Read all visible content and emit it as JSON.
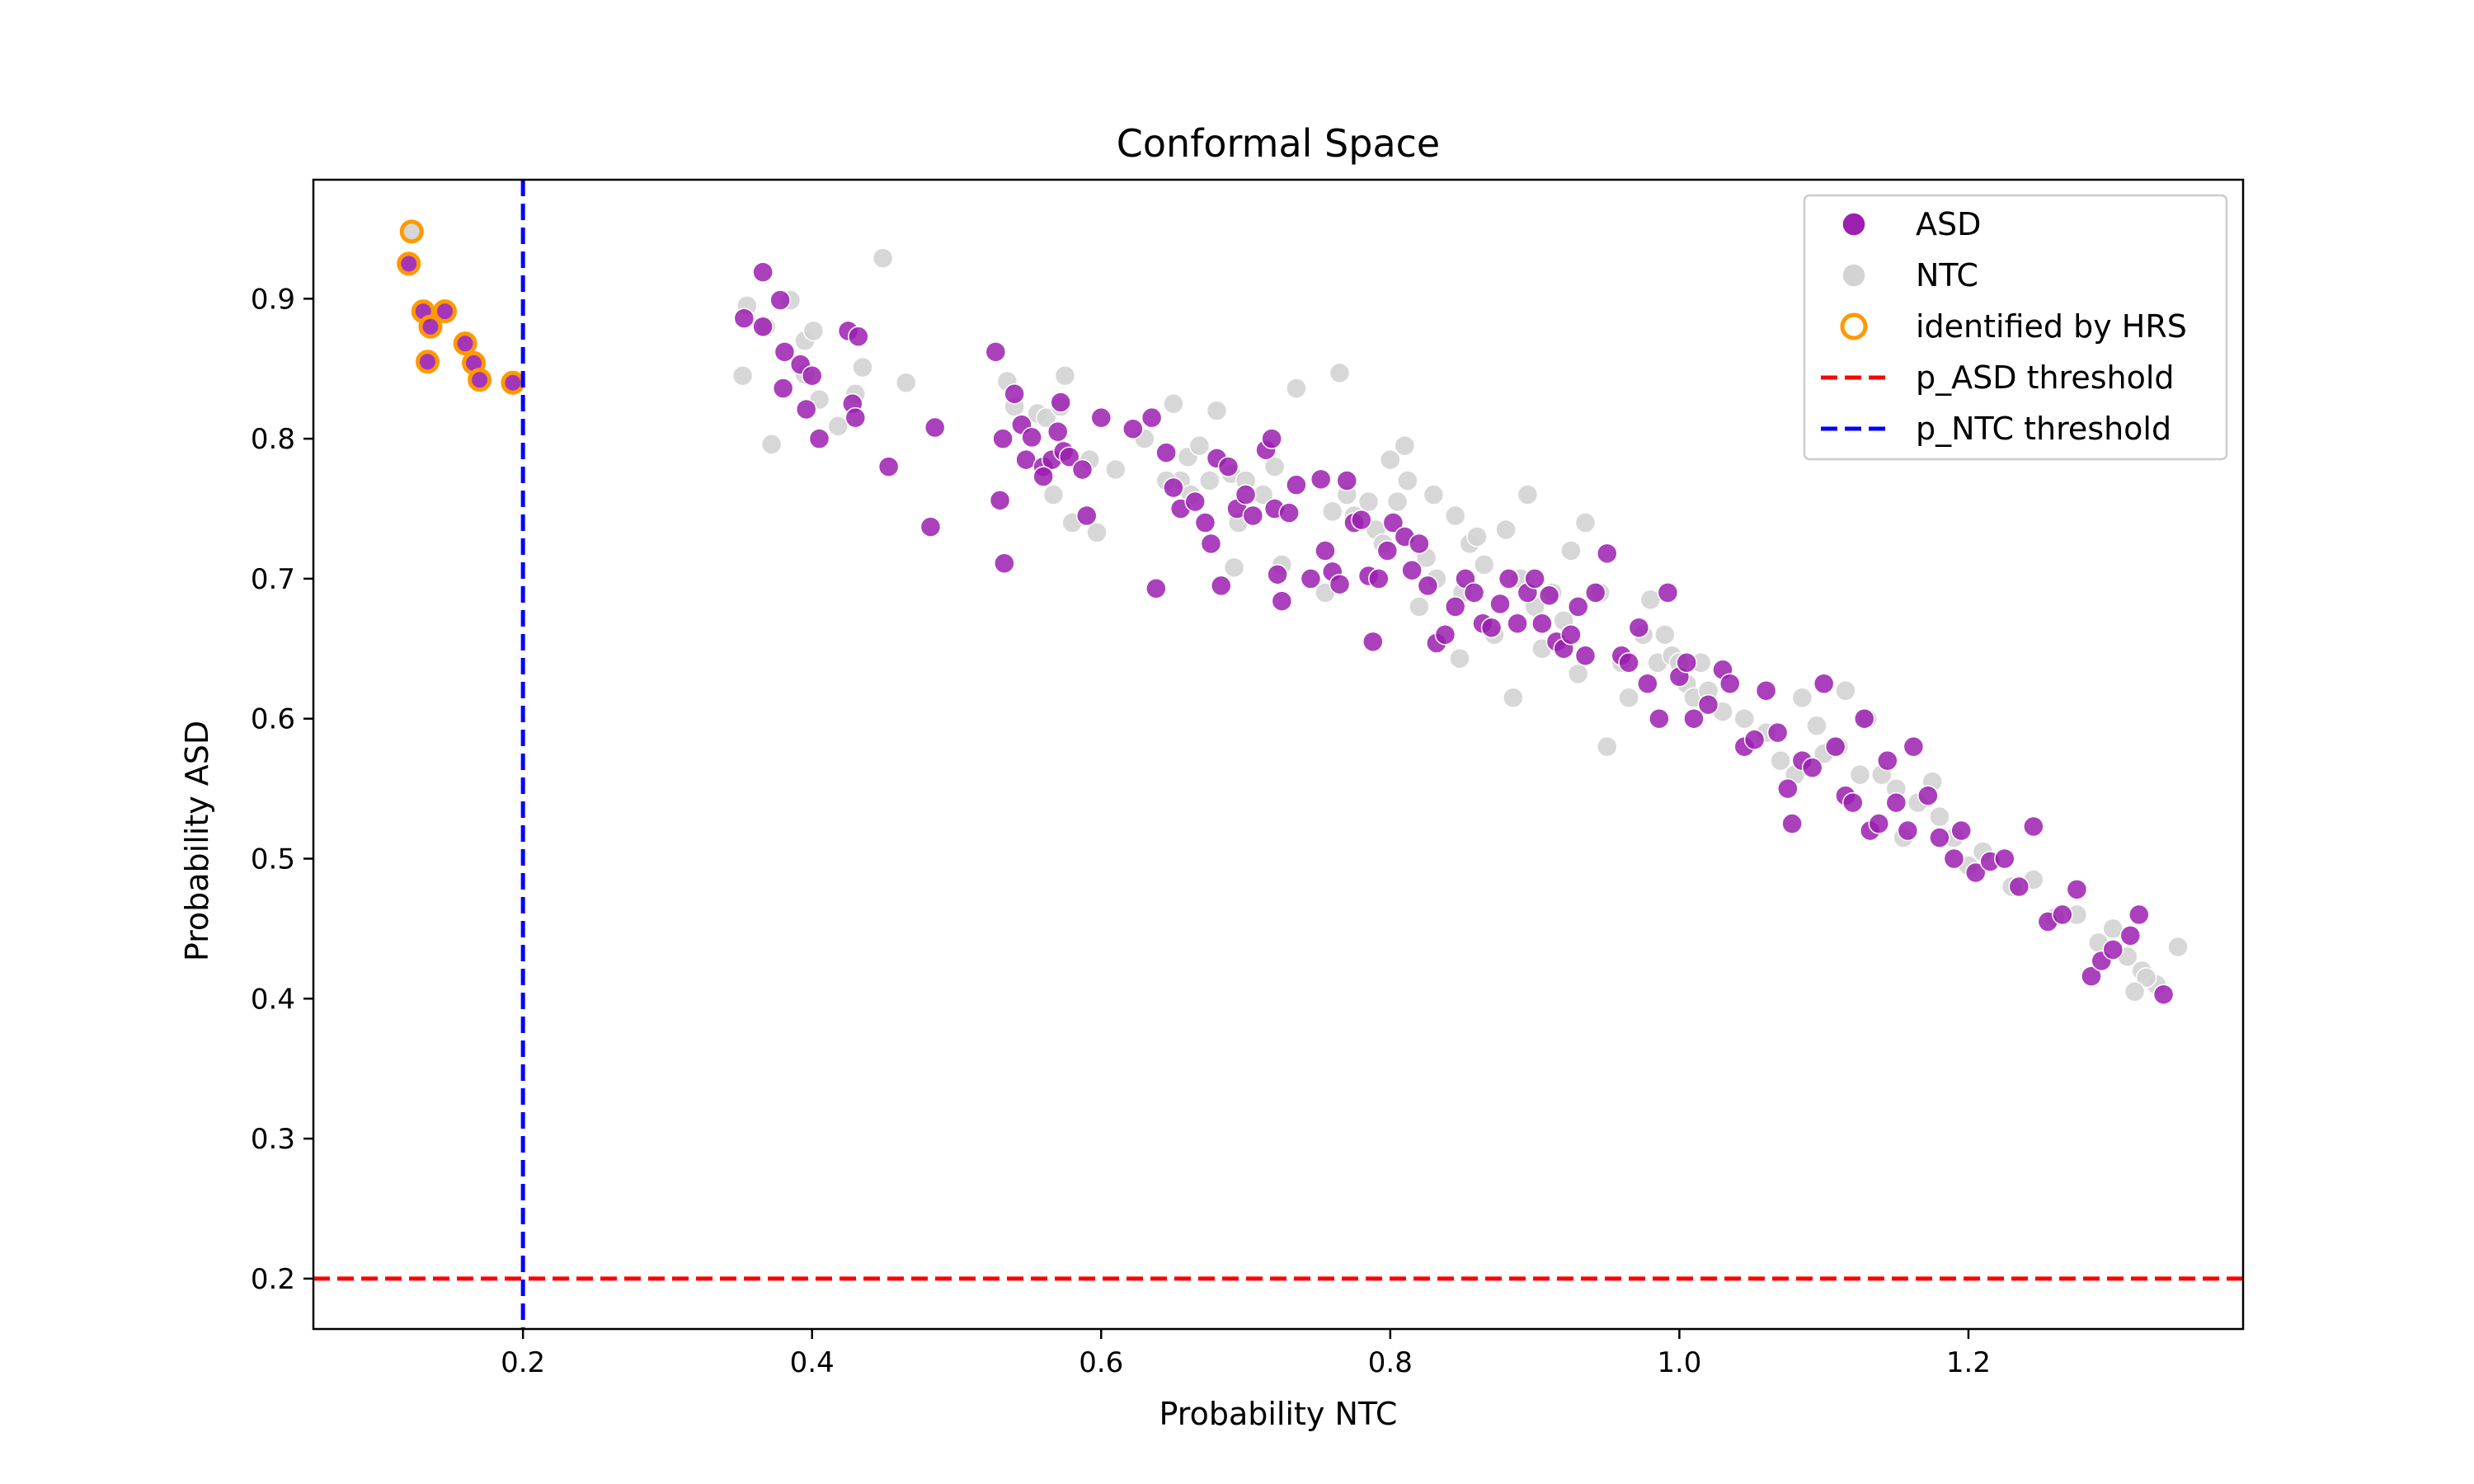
{
  "chart_data": {
    "type": "scatter",
    "title": "Conformal Space",
    "xlabel": "Probability NTC",
    "ylabel": "Probability ASD",
    "xlim": [
      0.055,
      1.39
    ],
    "ylim": [
      0.164,
      0.985
    ],
    "xticks": [
      "0.2",
      "0.4",
      "0.6",
      "0.8",
      "1.0",
      "1.2"
    ],
    "yticks": [
      "0.2",
      "0.3",
      "0.4",
      "0.5",
      "0.6",
      "0.7",
      "0.8",
      "0.9"
    ],
    "grid": false,
    "legend_position": "upper right",
    "colors": {
      "asd": "#9b1fb0",
      "ntc": "#d3d3d3",
      "hrs": "#ff9900",
      "asd_threshold": "#ff0000",
      "ntc_threshold": "#0000ff"
    },
    "legend": [
      {
        "label": "ASD",
        "kind": "asd"
      },
      {
        "label": "NTC",
        "kind": "ntc"
      },
      {
        "label": "identified by HRS",
        "kind": "hrs"
      },
      {
        "label": "p_ASD threshold",
        "kind": "asd_threshold"
      },
      {
        "label": "p_NTC threshold",
        "kind": "ntc_threshold"
      }
    ],
    "thresholds": {
      "p_asd": 0.2,
      "p_ntc": 0.2
    },
    "hrs_points": [
      [
        0.123,
        0.948
      ],
      [
        0.121,
        0.925
      ],
      [
        0.131,
        0.891
      ],
      [
        0.146,
        0.891
      ],
      [
        0.136,
        0.88
      ],
      [
        0.134,
        0.855
      ],
      [
        0.16,
        0.868
      ],
      [
        0.166,
        0.854
      ],
      [
        0.17,
        0.842
      ],
      [
        0.193,
        0.84
      ]
    ],
    "ntc_points": [
      [
        0.352,
        0.845
      ],
      [
        0.355,
        0.895
      ],
      [
        0.372,
        0.796
      ],
      [
        0.368,
        0.88
      ],
      [
        0.385,
        0.899
      ],
      [
        0.395,
        0.87
      ],
      [
        0.401,
        0.877
      ],
      [
        0.405,
        0.828
      ],
      [
        0.395,
        0.846
      ],
      [
        0.418,
        0.809
      ],
      [
        0.43,
        0.832
      ],
      [
        0.435,
        0.851
      ],
      [
        0.449,
        0.929
      ],
      [
        0.465,
        0.84
      ],
      [
        0.535,
        0.841
      ],
      [
        0.54,
        0.823
      ],
      [
        0.556,
        0.818
      ],
      [
        0.562,
        0.815
      ],
      [
        0.572,
        0.823
      ],
      [
        0.575,
        0.845
      ],
      [
        0.567,
        0.76
      ],
      [
        0.58,
        0.74
      ],
      [
        0.592,
        0.785
      ],
      [
        0.597,
        0.733
      ],
      [
        0.61,
        0.778
      ],
      [
        0.63,
        0.8
      ],
      [
        0.65,
        0.825
      ],
      [
        0.655,
        0.77
      ],
      [
        0.66,
        0.787
      ],
      [
        0.668,
        0.795
      ],
      [
        0.645,
        0.77
      ],
      [
        0.662,
        0.76
      ],
      [
        0.675,
        0.77
      ],
      [
        0.68,
        0.82
      ],
      [
        0.69,
        0.775
      ],
      [
        0.7,
        0.77
      ],
      [
        0.695,
        0.74
      ],
      [
        0.692,
        0.708
      ],
      [
        0.712,
        0.76
      ],
      [
        0.72,
        0.78
      ],
      [
        0.725,
        0.71
      ],
      [
        0.735,
        0.836
      ],
      [
        0.76,
        0.748
      ],
      [
        0.755,
        0.69
      ],
      [
        0.77,
        0.76
      ],
      [
        0.775,
        0.745
      ],
      [
        0.765,
        0.847
      ],
      [
        0.785,
        0.755
      ],
      [
        0.79,
        0.735
      ],
      [
        0.795,
        0.725
      ],
      [
        0.8,
        0.785
      ],
      [
        0.805,
        0.755
      ],
      [
        0.812,
        0.77
      ],
      [
        0.81,
        0.795
      ],
      [
        0.82,
        0.68
      ],
      [
        0.825,
        0.715
      ],
      [
        0.83,
        0.76
      ],
      [
        0.832,
        0.7
      ],
      [
        0.845,
        0.745
      ],
      [
        0.85,
        0.69
      ],
      [
        0.855,
        0.725
      ],
      [
        0.848,
        0.643
      ],
      [
        0.86,
        0.73
      ],
      [
        0.865,
        0.71
      ],
      [
        0.872,
        0.66
      ],
      [
        0.88,
        0.735
      ],
      [
        0.885,
        0.615
      ],
      [
        0.89,
        0.7
      ],
      [
        0.895,
        0.76
      ],
      [
        0.9,
        0.68
      ],
      [
        0.905,
        0.65
      ],
      [
        0.912,
        0.69
      ],
      [
        0.92,
        0.67
      ],
      [
        0.925,
        0.72
      ],
      [
        0.93,
        0.632
      ],
      [
        0.935,
        0.74
      ],
      [
        0.945,
        0.69
      ],
      [
        0.95,
        0.58
      ],
      [
        0.96,
        0.64
      ],
      [
        0.965,
        0.615
      ],
      [
        0.975,
        0.66
      ],
      [
        0.98,
        0.685
      ],
      [
        0.985,
        0.64
      ],
      [
        0.99,
        0.66
      ],
      [
        0.995,
        0.645
      ],
      [
        1.0,
        0.64
      ],
      [
        1.005,
        0.625
      ],
      [
        1.01,
        0.615
      ],
      [
        1.015,
        0.64
      ],
      [
        1.02,
        0.62
      ],
      [
        1.03,
        0.605
      ],
      [
        1.045,
        0.6
      ],
      [
        1.06,
        0.59
      ],
      [
        1.07,
        0.57
      ],
      [
        1.08,
        0.56
      ],
      [
        1.085,
        0.615
      ],
      [
        1.095,
        0.595
      ],
      [
        1.1,
        0.575
      ],
      [
        1.11,
        0.58
      ],
      [
        1.115,
        0.62
      ],
      [
        1.125,
        0.56
      ],
      [
        1.13,
        0.6
      ],
      [
        1.14,
        0.56
      ],
      [
        1.15,
        0.55
      ],
      [
        1.155,
        0.515
      ],
      [
        1.165,
        0.54
      ],
      [
        1.175,
        0.555
      ],
      [
        1.18,
        0.53
      ],
      [
        1.19,
        0.515
      ],
      [
        1.2,
        0.495
      ],
      [
        1.21,
        0.505
      ],
      [
        1.23,
        0.48
      ],
      [
        1.245,
        0.485
      ],
      [
        1.26,
        0.458
      ],
      [
        1.275,
        0.46
      ],
      [
        1.29,
        0.44
      ],
      [
        1.3,
        0.45
      ],
      [
        1.31,
        0.43
      ],
      [
        1.32,
        0.42
      ],
      [
        1.33,
        0.41
      ],
      [
        1.345,
        0.437
      ],
      [
        1.323,
        0.415
      ],
      [
        1.315,
        0.405
      ]
    ],
    "asd_points": [
      [
        0.353,
        0.886
      ],
      [
        0.366,
        0.88
      ],
      [
        0.366,
        0.919
      ],
      [
        0.378,
        0.899
      ],
      [
        0.381,
        0.862
      ],
      [
        0.38,
        0.836
      ],
      [
        0.392,
        0.853
      ],
      [
        0.396,
        0.821
      ],
      [
        0.4,
        0.845
      ],
      [
        0.405,
        0.8
      ],
      [
        0.425,
        0.877
      ],
      [
        0.432,
        0.873
      ],
      [
        0.428,
        0.825
      ],
      [
        0.43,
        0.815
      ],
      [
        0.453,
        0.78
      ],
      [
        0.482,
        0.737
      ],
      [
        0.485,
        0.808
      ],
      [
        0.527,
        0.862
      ],
      [
        0.53,
        0.756
      ],
      [
        0.533,
        0.711
      ],
      [
        0.532,
        0.8
      ],
      [
        0.54,
        0.832
      ],
      [
        0.545,
        0.81
      ],
      [
        0.548,
        0.785
      ],
      [
        0.552,
        0.801
      ],
      [
        0.56,
        0.78
      ],
      [
        0.566,
        0.785
      ],
      [
        0.57,
        0.805
      ],
      [
        0.574,
        0.791
      ],
      [
        0.578,
        0.787
      ],
      [
        0.587,
        0.778
      ],
      [
        0.572,
        0.826
      ],
      [
        0.56,
        0.773
      ],
      [
        0.59,
        0.745
      ],
      [
        0.6,
        0.815
      ],
      [
        0.622,
        0.807
      ],
      [
        0.635,
        0.815
      ],
      [
        0.638,
        0.693
      ],
      [
        0.645,
        0.79
      ],
      [
        0.65,
        0.765
      ],
      [
        0.655,
        0.75
      ],
      [
        0.665,
        0.755
      ],
      [
        0.672,
        0.74
      ],
      [
        0.676,
        0.725
      ],
      [
        0.68,
        0.786
      ],
      [
        0.683,
        0.695
      ],
      [
        0.688,
        0.78
      ],
      [
        0.694,
        0.75
      ],
      [
        0.7,
        0.76
      ],
      [
        0.705,
        0.745
      ],
      [
        0.714,
        0.792
      ],
      [
        0.718,
        0.8
      ],
      [
        0.72,
        0.75
      ],
      [
        0.722,
        0.703
      ],
      [
        0.725,
        0.684
      ],
      [
        0.73,
        0.747
      ],
      [
        0.735,
        0.767
      ],
      [
        0.745,
        0.7
      ],
      [
        0.752,
        0.771
      ],
      [
        0.755,
        0.72
      ],
      [
        0.76,
        0.705
      ],
      [
        0.765,
        0.696
      ],
      [
        0.77,
        0.77
      ],
      [
        0.775,
        0.74
      ],
      [
        0.78,
        0.742
      ],
      [
        0.785,
        0.702
      ],
      [
        0.788,
        0.655
      ],
      [
        0.792,
        0.7
      ],
      [
        0.798,
        0.72
      ],
      [
        0.802,
        0.74
      ],
      [
        0.81,
        0.73
      ],
      [
        0.815,
        0.706
      ],
      [
        0.82,
        0.725
      ],
      [
        0.826,
        0.695
      ],
      [
        0.832,
        0.654
      ],
      [
        0.838,
        0.66
      ],
      [
        0.845,
        0.68
      ],
      [
        0.852,
        0.7
      ],
      [
        0.858,
        0.69
      ],
      [
        0.864,
        0.668
      ],
      [
        0.87,
        0.665
      ],
      [
        0.876,
        0.682
      ],
      [
        0.882,
        0.7
      ],
      [
        0.888,
        0.668
      ],
      [
        0.895,
        0.69
      ],
      [
        0.9,
        0.7
      ],
      [
        0.905,
        0.668
      ],
      [
        0.91,
        0.688
      ],
      [
        0.915,
        0.655
      ],
      [
        0.92,
        0.65
      ],
      [
        0.925,
        0.66
      ],
      [
        0.93,
        0.68
      ],
      [
        0.935,
        0.645
      ],
      [
        0.942,
        0.69
      ],
      [
        0.95,
        0.718
      ],
      [
        0.96,
        0.645
      ],
      [
        0.965,
        0.64
      ],
      [
        0.972,
        0.665
      ],
      [
        0.978,
        0.625
      ],
      [
        0.986,
        0.6
      ],
      [
        0.992,
        0.69
      ],
      [
        1.0,
        0.63
      ],
      [
        1.005,
        0.64
      ],
      [
        1.01,
        0.6
      ],
      [
        1.02,
        0.61
      ],
      [
        1.03,
        0.635
      ],
      [
        1.035,
        0.625
      ],
      [
        1.045,
        0.58
      ],
      [
        1.052,
        0.585
      ],
      [
        1.06,
        0.62
      ],
      [
        1.068,
        0.59
      ],
      [
        1.075,
        0.55
      ],
      [
        1.078,
        0.525
      ],
      [
        1.085,
        0.57
      ],
      [
        1.092,
        0.565
      ],
      [
        1.1,
        0.625
      ],
      [
        1.108,
        0.58
      ],
      [
        1.115,
        0.545
      ],
      [
        1.12,
        0.54
      ],
      [
        1.128,
        0.6
      ],
      [
        1.132,
        0.52
      ],
      [
        1.138,
        0.525
      ],
      [
        1.144,
        0.57
      ],
      [
        1.15,
        0.54
      ],
      [
        1.158,
        0.52
      ],
      [
        1.162,
        0.58
      ],
      [
        1.172,
        0.545
      ],
      [
        1.18,
        0.515
      ],
      [
        1.19,
        0.5
      ],
      [
        1.195,
        0.52
      ],
      [
        1.205,
        0.49
      ],
      [
        1.215,
        0.498
      ],
      [
        1.225,
        0.5
      ],
      [
        1.235,
        0.48
      ],
      [
        1.245,
        0.523
      ],
      [
        1.255,
        0.455
      ],
      [
        1.265,
        0.46
      ],
      [
        1.275,
        0.478
      ],
      [
        1.285,
        0.416
      ],
      [
        1.292,
        0.427
      ],
      [
        1.3,
        0.435
      ],
      [
        1.318,
        0.46
      ],
      [
        1.312,
        0.445
      ],
      [
        1.335,
        0.403
      ]
    ]
  }
}
